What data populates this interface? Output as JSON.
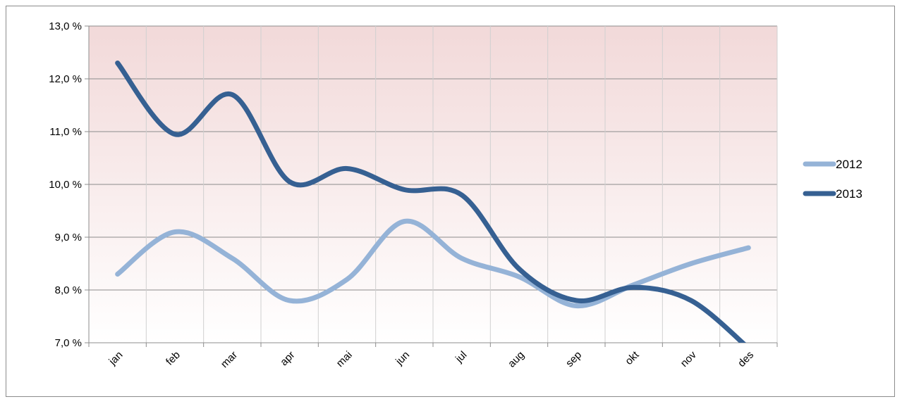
{
  "chart_data": {
    "type": "line",
    "categories": [
      "jan",
      "feb",
      "mar",
      "apr",
      "mai",
      "jun",
      "jul",
      "aug",
      "sep",
      "okt",
      "nov",
      "des"
    ],
    "ylim": [
      7.0,
      13.0
    ],
    "y_ticks": [
      7.0,
      8.0,
      9.0,
      10.0,
      11.0,
      12.0,
      13.0
    ],
    "y_tick_labels": [
      "7,0 %",
      "8,0 %",
      "9,0 %",
      "10,0 %",
      "11,0 %",
      "12,0 %",
      "13,0 %"
    ],
    "grid": true,
    "legend_position": "right",
    "background_gradient": [
      "#f2d9d9",
      "#ffffff"
    ],
    "series": [
      {
        "name": "2012",
        "color": "#95b3d7",
        "values": [
          8.3,
          9.1,
          8.6,
          7.8,
          8.2,
          9.3,
          8.6,
          8.25,
          7.7,
          8.1,
          8.5,
          8.8
        ]
      },
      {
        "name": "2013",
        "color": "#366092",
        "values": [
          12.3,
          10.95,
          11.7,
          10.05,
          10.3,
          9.9,
          9.8,
          8.4,
          7.8,
          8.05,
          7.8,
          6.9
        ]
      }
    ]
  }
}
